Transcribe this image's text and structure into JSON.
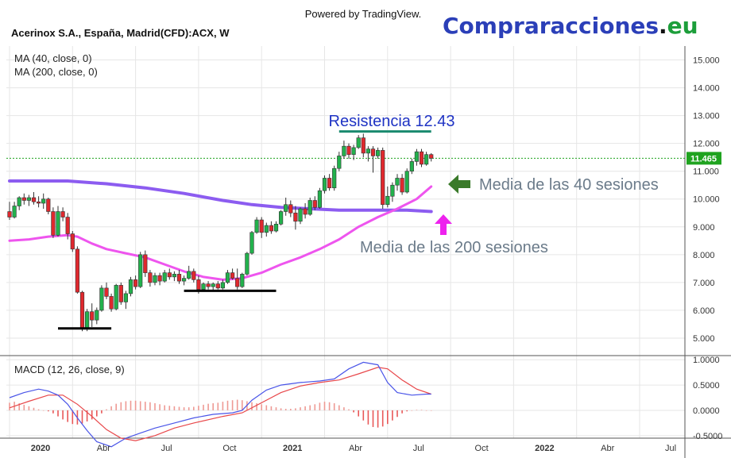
{
  "header": {
    "powered_by": "Powered by TradingView.",
    "symbol": "Acerinox S.A., España, Madrid(CFD):ACX, W",
    "brand_main": "Compraracciones",
    "brand_dot": ".",
    "brand_tld": "eu"
  },
  "colors": {
    "brand_blue": "#2b3fb8",
    "brand_green": "#1c9e3a",
    "up": "#22b14c",
    "down": "#e0282e",
    "ma40": "#ee55ee",
    "ma200": "#8c5cf0",
    "resistance": "#1a8a6e",
    "price_line": "#1fa31f",
    "support": "#000000",
    "macd_line": "#4a55e8",
    "signal_line": "#e8474a",
    "hist_pos": "#ee9a94",
    "hist_neg": "#e85858",
    "grid": "#e6e6e6",
    "axis_text": "#333333"
  },
  "chart_data": {
    "type": "candlestick",
    "symbol": "Acerinox S.A., España, Madrid(CFD):ACX, W",
    "timeframe": "W",
    "price_axis": {
      "range": [
        4.4,
        15.5
      ],
      "ticks": [
        5.0,
        6.0,
        7.0,
        8.0,
        9.0,
        10.0,
        11.0,
        12.0,
        13.0,
        14.0,
        15.0
      ],
      "tick_labels": [
        "5.000",
        "6.000",
        "7.000",
        "8.000",
        "9.000",
        "10.000",
        "11.000",
        "12.000",
        "13.000",
        "14.000",
        "15.000"
      ]
    },
    "current_price": 11.465,
    "current_price_label": "11.465",
    "time_axis": {
      "labels": [
        "2020",
        "Abr",
        "Jul",
        "Oct",
        "2021",
        "Abr",
        "Jul",
        "Oct",
        "2022",
        "Abr",
        "Jul"
      ],
      "bold": [
        "2020",
        "2021",
        "2022"
      ],
      "week_index": [
        0,
        13,
        26,
        39,
        52,
        65,
        78,
        91,
        104,
        117,
        130
      ]
    },
    "candles": [
      {
        "o": 9.55,
        "h": 9.9,
        "l": 9.25,
        "c": 9.35
      },
      {
        "o": 9.35,
        "h": 9.9,
        "l": 9.3,
        "c": 9.75
      },
      {
        "o": 9.75,
        "h": 10.1,
        "l": 9.6,
        "c": 10.05
      },
      {
        "o": 10.05,
        "h": 10.2,
        "l": 9.8,
        "c": 9.95
      },
      {
        "o": 9.95,
        "h": 10.15,
        "l": 9.75,
        "c": 10.05
      },
      {
        "o": 10.05,
        "h": 10.25,
        "l": 9.8,
        "c": 9.9
      },
      {
        "o": 9.9,
        "h": 10.1,
        "l": 9.7,
        "c": 9.85
      },
      {
        "o": 9.85,
        "h": 10.2,
        "l": 9.65,
        "c": 10.0
      },
      {
        "o": 10.0,
        "h": 10.05,
        "l": 9.45,
        "c": 9.55
      },
      {
        "o": 9.55,
        "h": 9.7,
        "l": 8.6,
        "c": 8.7
      },
      {
        "o": 8.7,
        "h": 9.75,
        "l": 8.65,
        "c": 9.55
      },
      {
        "o": 9.55,
        "h": 9.7,
        "l": 9.2,
        "c": 9.35
      },
      {
        "o": 9.35,
        "h": 9.5,
        "l": 8.55,
        "c": 8.75
      },
      {
        "o": 8.75,
        "h": 8.85,
        "l": 8.1,
        "c": 8.2
      },
      {
        "o": 8.2,
        "h": 8.3,
        "l": 6.6,
        "c": 6.65
      },
      {
        "o": 6.65,
        "h": 6.7,
        "l": 5.25,
        "c": 5.35
      },
      {
        "o": 5.35,
        "h": 6.05,
        "l": 5.25,
        "c": 5.95
      },
      {
        "o": 5.95,
        "h": 6.25,
        "l": 5.4,
        "c": 5.65
      },
      {
        "o": 5.65,
        "h": 6.1,
        "l": 5.5,
        "c": 6.0
      },
      {
        "o": 6.0,
        "h": 6.9,
        "l": 5.95,
        "c": 6.8
      },
      {
        "o": 6.8,
        "h": 7.0,
        "l": 6.4,
        "c": 6.5
      },
      {
        "o": 6.5,
        "h": 6.6,
        "l": 5.95,
        "c": 6.05
      },
      {
        "o": 6.05,
        "h": 6.95,
        "l": 6.0,
        "c": 6.9
      },
      {
        "o": 6.9,
        "h": 7.0,
        "l": 6.2,
        "c": 6.3
      },
      {
        "o": 6.3,
        "h": 6.7,
        "l": 6.05,
        "c": 6.6
      },
      {
        "o": 6.6,
        "h": 7.2,
        "l": 6.5,
        "c": 7.1
      },
      {
        "o": 7.1,
        "h": 7.25,
        "l": 6.75,
        "c": 6.85
      },
      {
        "o": 6.85,
        "h": 8.1,
        "l": 6.8,
        "c": 8.0
      },
      {
        "o": 8.0,
        "h": 8.15,
        "l": 7.2,
        "c": 7.35
      },
      {
        "o": 7.35,
        "h": 7.45,
        "l": 6.85,
        "c": 7.0
      },
      {
        "o": 7.0,
        "h": 7.35,
        "l": 6.9,
        "c": 7.25
      },
      {
        "o": 7.25,
        "h": 7.35,
        "l": 6.9,
        "c": 7.05
      },
      {
        "o": 7.05,
        "h": 7.45,
        "l": 7.0,
        "c": 7.35
      },
      {
        "o": 7.35,
        "h": 7.5,
        "l": 7.1,
        "c": 7.2
      },
      {
        "o": 7.2,
        "h": 7.4,
        "l": 7.05,
        "c": 7.3
      },
      {
        "o": 7.3,
        "h": 7.45,
        "l": 6.95,
        "c": 7.05
      },
      {
        "o": 7.05,
        "h": 7.25,
        "l": 6.9,
        "c": 7.15
      },
      {
        "o": 7.15,
        "h": 7.6,
        "l": 7.1,
        "c": 7.4
      },
      {
        "o": 7.4,
        "h": 7.5,
        "l": 7.0,
        "c": 7.1
      },
      {
        "o": 7.1,
        "h": 7.25,
        "l": 6.6,
        "c": 6.75
      },
      {
        "o": 6.75,
        "h": 7.0,
        "l": 6.7,
        "c": 6.95
      },
      {
        "o": 6.95,
        "h": 7.05,
        "l": 6.75,
        "c": 6.85
      },
      {
        "o": 6.85,
        "h": 7.0,
        "l": 6.7,
        "c": 6.95
      },
      {
        "o": 6.95,
        "h": 7.05,
        "l": 6.75,
        "c": 6.8
      },
      {
        "o": 6.8,
        "h": 7.1,
        "l": 6.75,
        "c": 7.0
      },
      {
        "o": 7.0,
        "h": 7.45,
        "l": 6.95,
        "c": 7.35
      },
      {
        "o": 7.35,
        "h": 7.5,
        "l": 7.1,
        "c": 7.15
      },
      {
        "o": 7.15,
        "h": 7.5,
        "l": 6.75,
        "c": 6.85
      },
      {
        "o": 6.85,
        "h": 7.35,
        "l": 6.8,
        "c": 7.3
      },
      {
        "o": 7.3,
        "h": 8.1,
        "l": 7.25,
        "c": 8.05
      },
      {
        "o": 8.05,
        "h": 8.85,
        "l": 8.0,
        "c": 8.8
      },
      {
        "o": 8.8,
        "h": 9.35,
        "l": 8.75,
        "c": 9.25
      },
      {
        "o": 9.25,
        "h": 9.35,
        "l": 8.6,
        "c": 8.8
      },
      {
        "o": 8.8,
        "h": 9.15,
        "l": 8.65,
        "c": 9.05
      },
      {
        "o": 9.05,
        "h": 9.2,
        "l": 8.75,
        "c": 8.85
      },
      {
        "o": 8.85,
        "h": 9.2,
        "l": 8.8,
        "c": 9.1
      },
      {
        "o": 9.1,
        "h": 9.6,
        "l": 9.05,
        "c": 9.55
      },
      {
        "o": 9.55,
        "h": 10.05,
        "l": 9.4,
        "c": 9.8
      },
      {
        "o": 9.8,
        "h": 9.95,
        "l": 9.35,
        "c": 9.5
      },
      {
        "o": 9.5,
        "h": 9.75,
        "l": 8.9,
        "c": 9.2
      },
      {
        "o": 9.2,
        "h": 9.7,
        "l": 9.1,
        "c": 9.65
      },
      {
        "o": 9.65,
        "h": 9.85,
        "l": 9.3,
        "c": 9.45
      },
      {
        "o": 9.45,
        "h": 10.05,
        "l": 9.4,
        "c": 9.95
      },
      {
        "o": 9.95,
        "h": 10.1,
        "l": 9.6,
        "c": 9.7
      },
      {
        "o": 9.7,
        "h": 10.4,
        "l": 9.65,
        "c": 10.3
      },
      {
        "o": 10.3,
        "h": 10.85,
        "l": 10.2,
        "c": 10.75
      },
      {
        "o": 10.75,
        "h": 10.9,
        "l": 10.3,
        "c": 10.4
      },
      {
        "o": 10.4,
        "h": 11.2,
        "l": 10.3,
        "c": 11.1
      },
      {
        "o": 11.1,
        "h": 11.7,
        "l": 11.0,
        "c": 11.55
      },
      {
        "o": 11.55,
        "h": 12.1,
        "l": 11.45,
        "c": 11.9
      },
      {
        "o": 11.9,
        "h": 12.0,
        "l": 11.45,
        "c": 11.6
      },
      {
        "o": 11.6,
        "h": 11.95,
        "l": 11.4,
        "c": 11.85
      },
      {
        "o": 11.85,
        "h": 12.3,
        "l": 11.8,
        "c": 12.2
      },
      {
        "o": 12.2,
        "h": 12.35,
        "l": 11.5,
        "c": 11.65
      },
      {
        "o": 11.65,
        "h": 11.9,
        "l": 11.35,
        "c": 11.8
      },
      {
        "o": 11.8,
        "h": 11.9,
        "l": 10.95,
        "c": 11.55
      },
      {
        "o": 11.55,
        "h": 11.85,
        "l": 11.45,
        "c": 11.75
      },
      {
        "o": 11.75,
        "h": 11.85,
        "l": 9.65,
        "c": 9.8
      },
      {
        "o": 9.8,
        "h": 10.45,
        "l": 9.7,
        "c": 10.1
      },
      {
        "o": 10.1,
        "h": 10.6,
        "l": 9.9,
        "c": 10.5
      },
      {
        "o": 10.5,
        "h": 10.9,
        "l": 10.3,
        "c": 10.75
      },
      {
        "o": 10.75,
        "h": 10.9,
        "l": 10.15,
        "c": 10.25
      },
      {
        "o": 10.25,
        "h": 11.1,
        "l": 10.2,
        "c": 11.0
      },
      {
        "o": 11.0,
        "h": 11.45,
        "l": 10.9,
        "c": 11.35
      },
      {
        "o": 11.35,
        "h": 11.8,
        "l": 11.2,
        "c": 11.7
      },
      {
        "o": 11.7,
        "h": 11.8,
        "l": 11.15,
        "c": 11.25
      },
      {
        "o": 11.25,
        "h": 11.7,
        "l": 11.2,
        "c": 11.6
      },
      {
        "o": 11.6,
        "h": 11.65,
        "l": 11.35,
        "c": 11.465
      }
    ],
    "ma40": {
      "label": "MA (40, close, 0)",
      "points": [
        [
          0,
          8.5
        ],
        [
          4,
          8.55
        ],
        [
          8,
          8.65
        ],
        [
          12,
          8.7
        ],
        [
          14,
          8.65
        ],
        [
          17,
          8.4
        ],
        [
          20,
          8.2
        ],
        [
          24,
          8.05
        ],
        [
          28,
          7.9
        ],
        [
          32,
          7.65
        ],
        [
          36,
          7.4
        ],
        [
          40,
          7.2
        ],
        [
          44,
          7.1
        ],
        [
          48,
          7.15
        ],
        [
          52,
          7.35
        ],
        [
          56,
          7.65
        ],
        [
          60,
          7.9
        ],
        [
          64,
          8.2
        ],
        [
          68,
          8.55
        ],
        [
          72,
          9.0
        ],
        [
          76,
          9.35
        ],
        [
          80,
          9.65
        ],
        [
          84,
          10.0
        ],
        [
          87,
          10.45
        ]
      ]
    },
    "ma200": {
      "label": "MA (200, close, 0)",
      "points": [
        [
          0,
          10.65
        ],
        [
          12,
          10.65
        ],
        [
          20,
          10.55
        ],
        [
          28,
          10.4
        ],
        [
          36,
          10.2
        ],
        [
          44,
          9.95
        ],
        [
          50,
          9.8
        ],
        [
          56,
          9.7
        ],
        [
          62,
          9.65
        ],
        [
          68,
          9.6
        ],
        [
          76,
          9.6
        ],
        [
          82,
          9.6
        ],
        [
          87,
          9.55
        ]
      ]
    },
    "annotations": {
      "resistance_label": "Resistencia 12.43",
      "resistance_level": 12.43,
      "resistance_weeks": [
        68,
        87
      ],
      "ma40_label": "Media de las 40 sesiones",
      "ma200_label": "Media de las 200 sesiones",
      "support_lines": [
        {
          "level": 5.35,
          "weeks": [
            10,
            21
          ]
        },
        {
          "level": 6.7,
          "weeks": [
            36,
            55
          ]
        }
      ]
    },
    "macd": {
      "label": "MACD (12, 26, close, 9)",
      "range": [
        -0.55,
        1.05
      ],
      "ticks": [
        -0.5,
        0.0,
        0.5,
        1.0
      ],
      "tick_labels": [
        "-0.5000",
        "0.0000",
        "0.5000",
        "1.0000"
      ],
      "macd_line": [
        [
          0,
          0.25
        ],
        [
          3,
          0.35
        ],
        [
          6,
          0.42
        ],
        [
          8,
          0.38
        ],
        [
          10,
          0.3
        ],
        [
          12,
          0.12
        ],
        [
          14,
          -0.15
        ],
        [
          16,
          -0.4
        ],
        [
          18,
          -0.62
        ],
        [
          21,
          -0.72
        ],
        [
          24,
          -0.55
        ],
        [
          27,
          -0.45
        ],
        [
          30,
          -0.35
        ],
        [
          34,
          -0.25
        ],
        [
          38,
          -0.15
        ],
        [
          42,
          -0.08
        ],
        [
          46,
          -0.05
        ],
        [
          48,
          0.0
        ],
        [
          50,
          0.2
        ],
        [
          53,
          0.4
        ],
        [
          56,
          0.5
        ],
        [
          60,
          0.55
        ],
        [
          64,
          0.58
        ],
        [
          67,
          0.62
        ],
        [
          70,
          0.82
        ],
        [
          73,
          0.95
        ],
        [
          76,
          0.9
        ],
        [
          78,
          0.55
        ],
        [
          80,
          0.35
        ],
        [
          83,
          0.3
        ],
        [
          86,
          0.32
        ],
        [
          87,
          0.32
        ]
      ],
      "signal_line": [
        [
          0,
          0.05
        ],
        [
          4,
          0.18
        ],
        [
          8,
          0.3
        ],
        [
          11,
          0.3
        ],
        [
          14,
          0.12
        ],
        [
          17,
          -0.12
        ],
        [
          20,
          -0.38
        ],
        [
          23,
          -0.55
        ],
        [
          26,
          -0.6
        ],
        [
          30,
          -0.5
        ],
        [
          34,
          -0.35
        ],
        [
          38,
          -0.25
        ],
        [
          44,
          -0.12
        ],
        [
          48,
          -0.05
        ],
        [
          52,
          0.15
        ],
        [
          56,
          0.35
        ],
        [
          60,
          0.48
        ],
        [
          64,
          0.55
        ],
        [
          68,
          0.6
        ],
        [
          72,
          0.72
        ],
        [
          76,
          0.85
        ],
        [
          78,
          0.82
        ],
        [
          81,
          0.6
        ],
        [
          84,
          0.42
        ],
        [
          87,
          0.32
        ]
      ],
      "histogram": [
        0.15,
        0.17,
        0.14,
        0.11,
        0.08,
        0.05,
        0.02,
        0.0,
        -0.02,
        -0.06,
        -0.12,
        -0.18,
        -0.23,
        -0.27,
        -0.28,
        -0.26,
        -0.22,
        -0.18,
        -0.12,
        -0.06,
        0.02,
        0.08,
        0.13,
        0.16,
        0.18,
        0.19,
        0.19,
        0.18,
        0.17,
        0.16,
        0.14,
        0.12,
        0.1,
        0.09,
        0.08,
        0.07,
        0.06,
        0.06,
        0.07,
        0.09,
        0.11,
        0.13,
        0.14,
        0.15,
        0.17,
        0.19,
        0.2,
        0.21,
        0.2,
        0.18,
        0.16,
        0.14,
        0.12,
        0.1,
        0.08,
        0.06,
        0.04,
        0.03,
        0.03,
        0.04,
        0.06,
        0.08,
        0.1,
        0.12,
        0.15,
        0.17,
        0.16,
        0.14,
        0.1,
        0.06,
        0.02,
        -0.04,
        -0.12,
        -0.2,
        -0.28,
        -0.33,
        -0.34,
        -0.32,
        -0.27,
        -0.2,
        -0.13,
        -0.06,
        -0.02,
        0.0,
        0.01,
        0.01,
        0.0,
        0.0
      ]
    }
  }
}
